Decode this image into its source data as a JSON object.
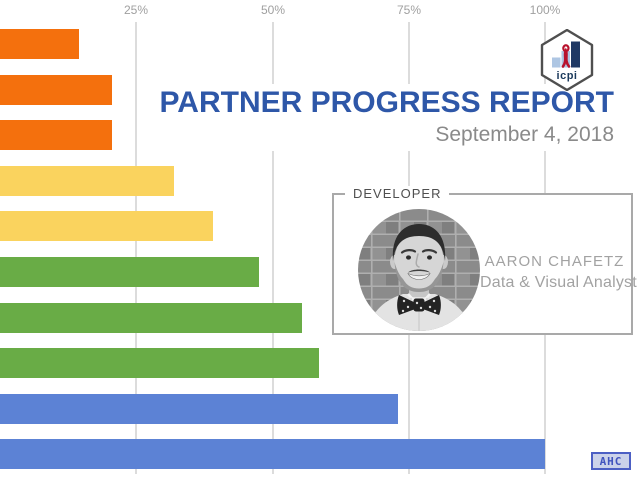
{
  "slide": {
    "title": "PARTNER PROGRESS REPORT",
    "subtitle": "September 4, 2018"
  },
  "chart_data": {
    "type": "bar",
    "orientation": "horizontal",
    "title": "",
    "xlabel": "",
    "ylabel": "",
    "xlim": [
      0,
      100
    ],
    "x_ticks": [
      {
        "label": "25%",
        "value": 25
      },
      {
        "label": "50%",
        "value": 50
      },
      {
        "label": "75%",
        "value": 75
      },
      {
        "label": "100%",
        "value": 100
      }
    ],
    "values": [
      14.5,
      20.5,
      20.5,
      32,
      39,
      47.5,
      55.5,
      58.5,
      73,
      100
    ],
    "bar_colors": [
      "#F4700D",
      "#F4700D",
      "#F4700D",
      "#FAD35E",
      "#FAD35E",
      "#69AC46",
      "#69AC46",
      "#69AC46",
      "#5C82D5",
      "#5C82D5"
    ],
    "gridline_color": "#DCDCDC",
    "tick_label_color": "#A0A0A0",
    "grid": true,
    "legend_position": "none"
  },
  "logo": {
    "text": "icpi",
    "colors": {
      "hexagon_stroke": "#4F4F4F",
      "bar_light": "#AEC6E3",
      "bar_dark": "#1F3864",
      "ribbon": "#B8122D",
      "text": "#1B3A5C"
    }
  },
  "developer_card": {
    "label": "DEVELOPER",
    "name": "AARON CHAFETZ",
    "role": "Data & Visual Analyst"
  },
  "badge": {
    "text": "AHC"
  },
  "colors": {
    "title": "#2E57A8",
    "subtitle": "#8A8A8A"
  }
}
